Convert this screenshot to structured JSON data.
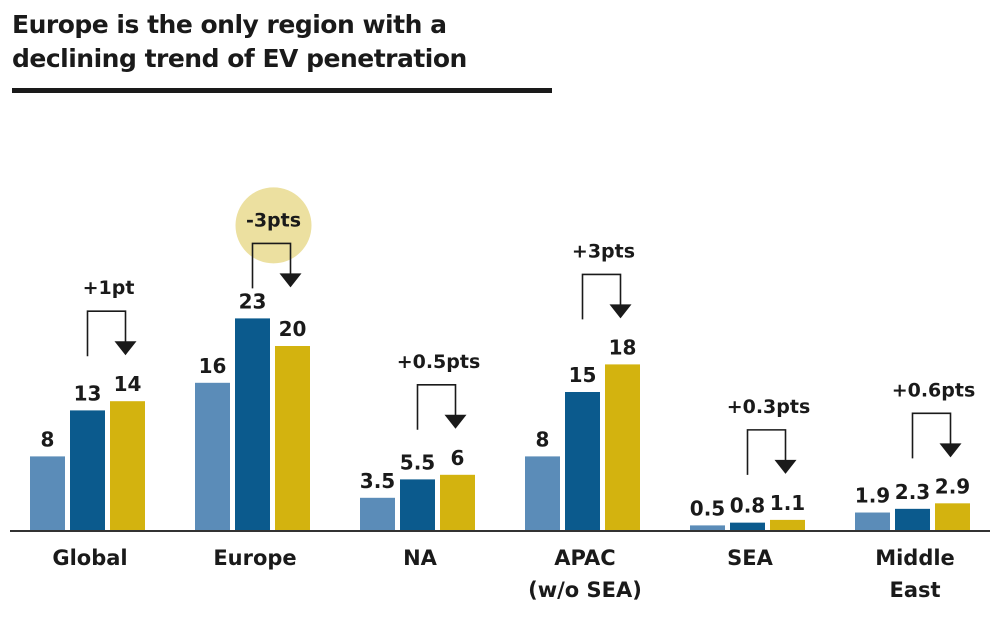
{
  "chart_data": {
    "type": "bar",
    "title": "Europe is the only region with a declining trend of EV penetration",
    "title_lines": [
      "Europe is the only region with a",
      "declining trend of EV penetration"
    ],
    "categories": [
      [
        "Global"
      ],
      [
        "Europe"
      ],
      [
        "NA"
      ],
      [
        "APAC",
        "(w/o SEA)"
      ],
      [
        "SEA"
      ],
      [
        "Middle",
        "East"
      ]
    ],
    "series": [
      {
        "values": [
          8,
          16,
          3.5,
          8,
          0.5,
          1.9
        ]
      },
      {
        "values": [
          13,
          23,
          5.5,
          15,
          0.8,
          2.3
        ]
      },
      {
        "values": [
          14,
          20,
          6,
          18,
          1.1,
          2.9
        ]
      }
    ],
    "value_labels": [
      [
        "8",
        "13",
        "14"
      ],
      [
        "16",
        "23",
        "20"
      ],
      [
        "3.5",
        "5.5",
        "6"
      ],
      [
        "8",
        "15",
        "18"
      ],
      [
        "0.5",
        "0.8",
        "1.1"
      ],
      [
        "1.9",
        "2.3",
        "2.9"
      ]
    ],
    "change_annotations": [
      "+1pt",
      "-3pts",
      "+0.5pts",
      "+3pts",
      "+0.3pts",
      "+0.6pts"
    ],
    "highlighted_annotation": 1,
    "ylim": [
      0,
      25
    ],
    "grid": false,
    "legend": "none",
    "colors": {
      "series": [
        "#5b8cb8",
        "#0b5a8d",
        "#d3b30f"
      ],
      "highlight": "#ece0a0",
      "text": "#1a1a1a"
    }
  }
}
